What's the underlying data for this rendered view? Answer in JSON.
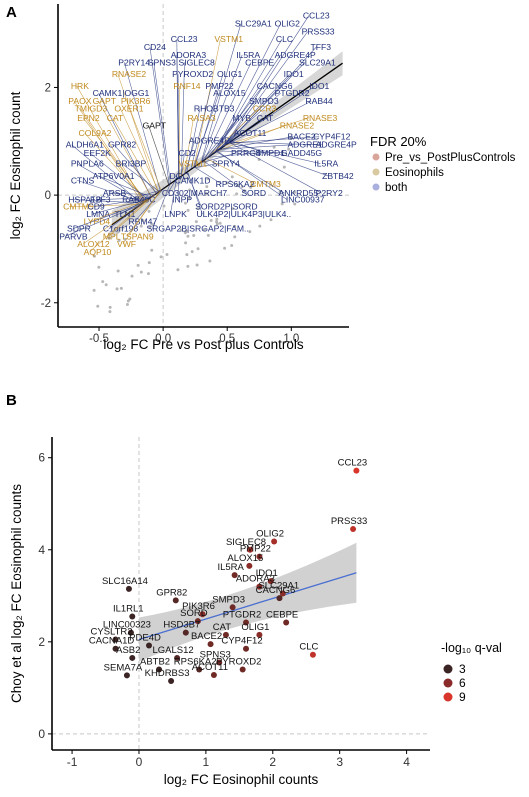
{
  "panel_a_letter": "A",
  "panel_b_letter": "B",
  "chart_data": [
    {
      "type": "scatter",
      "panel": "A",
      "xlabel": "log₂ FC Pre vs Post plus Controls",
      "ylabel": "log₂ FC Eosinophil count",
      "xlim": [
        -0.82,
        1.45
      ],
      "ylim": [
        -2.45,
        3.55
      ],
      "xticks": [
        -0.5,
        0.0,
        0.5,
        1.0
      ],
      "xtick_labels": [
        "-0.5",
        "0.0",
        "0.5",
        "1.0"
      ],
      "yticks": [
        -2,
        0,
        2
      ],
      "ytick_labels": [
        "-2",
        "0",
        "2"
      ],
      "grid": false,
      "reference_lines": {
        "x": 0,
        "y": 0
      },
      "fit_line": {
        "x0": -0.4,
        "y0": -0.55,
        "x1": 1.4,
        "y1": 2.45,
        "band": true
      },
      "legend": {
        "title": "FDR 20%",
        "position": "right",
        "entries": [
          {
            "name": "Pre_vs_PostPlusControls",
            "color": "#d9a59a"
          },
          {
            "name": "Eosinophils",
            "color": "#d9c9a0"
          },
          {
            "name": "both",
            "color": "#aab0dd"
          }
        ]
      },
      "colors": {
        "pre_post": "#c08a1e",
        "both": "#1f2f7a",
        "background_points": "#9a9a9a"
      },
      "labels": [
        {
          "text": "CCL23",
          "x": 1.09,
          "y": 3.28,
          "group": "both"
        },
        {
          "text": "PRSS33",
          "x": 1.08,
          "y": 2.98,
          "group": "both"
        },
        {
          "text": "SLC29A1",
          "x": 0.56,
          "y": 3.13,
          "group": "both"
        },
        {
          "text": "OLIG2",
          "x": 0.87,
          "y": 3.13,
          "group": "both"
        },
        {
          "text": "CCL23",
          "x": 0.06,
          "y": 2.84,
          "group": "both"
        },
        {
          "text": "VSTM1",
          "x": 0.4,
          "y": 2.84,
          "group": "pre_post"
        },
        {
          "text": "CLC",
          "x": 0.88,
          "y": 2.84,
          "group": "both"
        },
        {
          "text": "TFF3",
          "x": 1.15,
          "y": 2.7,
          "group": "both"
        },
        {
          "text": "CD24",
          "x": -0.15,
          "y": 2.7,
          "group": "both"
        },
        {
          "text": "ADORA3",
          "x": 0.06,
          "y": 2.55,
          "group": "both"
        },
        {
          "text": "IL5RA",
          "x": 0.57,
          "y": 2.55,
          "group": "both"
        },
        {
          "text": "ADGRE4P",
          "x": 0.87,
          "y": 2.55,
          "group": "both"
        },
        {
          "text": "P2RY14",
          "x": -0.35,
          "y": 2.41,
          "group": "both"
        },
        {
          "text": "SPNS3",
          "x": -0.12,
          "y": 2.41,
          "group": "both"
        },
        {
          "text": "SIGLEC8",
          "x": 0.12,
          "y": 2.41,
          "group": "both"
        },
        {
          "text": "CEBPE",
          "x": 0.64,
          "y": 2.41,
          "group": "both"
        },
        {
          "text": "SLC29A1",
          "x": 1.06,
          "y": 2.41,
          "group": "both"
        },
        {
          "text": "RNASE2",
          "x": -0.4,
          "y": 2.19,
          "group": "pre_post"
        },
        {
          "text": "PYROXD2",
          "x": 0.07,
          "y": 2.19,
          "group": "both"
        },
        {
          "text": "OLIG1",
          "x": 0.42,
          "y": 2.19,
          "group": "both"
        },
        {
          "text": "IDO1",
          "x": 0.94,
          "y": 2.19,
          "group": "both"
        },
        {
          "text": "HRK",
          "x": -0.72,
          "y": 1.97,
          "group": "pre_post"
        },
        {
          "text": "RNF14",
          "x": 0.08,
          "y": 1.97,
          "group": "pre_post"
        },
        {
          "text": "PMP22",
          "x": 0.33,
          "y": 1.97,
          "group": "both"
        },
        {
          "text": "CACNG6",
          "x": 0.73,
          "y": 1.97,
          "group": "both"
        },
        {
          "text": "IDO1",
          "x": 1.14,
          "y": 1.97,
          "group": "both"
        },
        {
          "text": "CAMK1|OGG1",
          "x": -0.55,
          "y": 1.84,
          "group": "both"
        },
        {
          "text": "ALOX15",
          "x": 0.39,
          "y": 1.84,
          "group": "both"
        },
        {
          "text": "PTGDR2",
          "x": 0.87,
          "y": 1.84,
          "group": "both"
        },
        {
          "text": "PAOX",
          "x": -0.74,
          "y": 1.69,
          "group": "pre_post"
        },
        {
          "text": "GAPT",
          "x": -0.55,
          "y": 1.69,
          "group": "pre_post"
        },
        {
          "text": "PIK3R6",
          "x": -0.33,
          "y": 1.69,
          "group": "pre_post"
        },
        {
          "text": "SMPD3",
          "x": 0.67,
          "y": 1.69,
          "group": "both"
        },
        {
          "text": "RAB44",
          "x": 1.11,
          "y": 1.69,
          "group": "both"
        },
        {
          "text": "TMIGD3",
          "x": -0.69,
          "y": 1.55,
          "group": "pre_post"
        },
        {
          "text": "OXER1",
          "x": -0.38,
          "y": 1.55,
          "group": "pre_post"
        },
        {
          "text": "RHOBTB3",
          "x": 0.24,
          "y": 1.55,
          "group": "both"
        },
        {
          "text": "CCR3",
          "x": 0.7,
          "y": 1.55,
          "group": "pre_post"
        },
        {
          "text": "EPN2",
          "x": -0.67,
          "y": 1.38,
          "group": "pre_post"
        },
        {
          "text": "CAT",
          "x": -0.44,
          "y": 1.38,
          "group": "pre_post"
        },
        {
          "text": "RASA3",
          "x": 0.19,
          "y": 1.38,
          "group": "pre_post"
        },
        {
          "text": "MYB",
          "x": 0.54,
          "y": 1.38,
          "group": "both"
        },
        {
          "text": "CAT",
          "x": 0.73,
          "y": 1.38,
          "group": "both"
        },
        {
          "text": "RNASE3",
          "x": 1.09,
          "y": 1.38,
          "group": "pre_post"
        },
        {
          "text": "GAPT",
          "x": -0.16,
          "y": 1.24,
          "group": "black"
        },
        {
          "text": "RNASE2",
          "x": 0.91,
          "y": 1.24,
          "group": "pre_post"
        },
        {
          "text": "COL9A2",
          "x": -0.66,
          "y": 1.1,
          "group": "pre_post"
        },
        {
          "text": "ACOT11",
          "x": 0.55,
          "y": 1.1,
          "group": "both"
        },
        {
          "text": "ADGRE4P",
          "x": 0.2,
          "y": 0.96,
          "group": "both"
        },
        {
          "text": "BACE2",
          "x": 0.97,
          "y": 1.03,
          "group": "both"
        },
        {
          "text": "CYP4F12",
          "x": 1.17,
          "y": 1.03,
          "group": "both"
        },
        {
          "text": "ALDH6A1",
          "x": -0.76,
          "y": 0.88,
          "group": "both"
        },
        {
          "text": "GPR82",
          "x": -0.43,
          "y": 0.88,
          "group": "both"
        },
        {
          "text": "ADGRE1",
          "x": 0.97,
          "y": 0.88,
          "group": "both"
        },
        {
          "text": "ADGRE4P",
          "x": 1.19,
          "y": 0.88,
          "group": "both"
        },
        {
          "text": "EEF2K",
          "x": -0.62,
          "y": 0.73,
          "group": "both"
        },
        {
          "text": "CD2",
          "x": 0.12,
          "y": 0.73,
          "group": "both"
        },
        {
          "text": "PRRG4",
          "x": 0.53,
          "y": 0.73,
          "group": "both"
        },
        {
          "text": "SMPD1",
          "x": 0.72,
          "y": 0.73,
          "group": "both"
        },
        {
          "text": "GADD45G",
          "x": 0.92,
          "y": 0.73,
          "group": "both"
        },
        {
          "text": "PNPLA6",
          "x": -0.72,
          "y": 0.53,
          "group": "both"
        },
        {
          "text": "BRI3BP",
          "x": -0.37,
          "y": 0.53,
          "group": "both"
        },
        {
          "text": "SPRY4",
          "x": 0.38,
          "y": 0.53,
          "group": "both"
        },
        {
          "text": "VSTM1",
          "x": 0.12,
          "y": 0.53,
          "group": "pre_post"
        },
        {
          "text": "IL5RA",
          "x": 1.18,
          "y": 0.53,
          "group": "both"
        },
        {
          "text": "ATP6V0A1",
          "x": -0.55,
          "y": 0.3,
          "group": "both"
        },
        {
          "text": "DGC",
          "x": 0.05,
          "y": 0.3,
          "group": "both"
        },
        {
          "text": "ZBTB42",
          "x": 1.24,
          "y": 0.3,
          "group": "both"
        },
        {
          "text": "CTNS",
          "x": -0.72,
          "y": 0.22,
          "group": "both"
        },
        {
          "text": "CAMK1D",
          "x": 0.09,
          "y": 0.22,
          "group": "both"
        },
        {
          "text": "RPS6KA2",
          "x": 0.41,
          "y": 0.15,
          "group": "both"
        },
        {
          "text": "CMTM3",
          "x": 0.68,
          "y": 0.15,
          "group": "pre_post"
        },
        {
          "text": "ARSB",
          "x": -0.47,
          "y": -0.02,
          "group": "both"
        },
        {
          "text": "CD302|MARCH7",
          "x": -0.01,
          "y": -0.02,
          "group": "both"
        },
        {
          "text": "SORD",
          "x": 0.61,
          "y": -0.02,
          "group": "both"
        },
        {
          "text": "ANKRD55",
          "x": 0.9,
          "y": -0.02,
          "group": "both"
        },
        {
          "text": "P2RY2",
          "x": 1.19,
          "y": -0.02,
          "group": "both"
        },
        {
          "text": "HSPA1B",
          "x": -0.74,
          "y": -0.14,
          "group": "both"
        },
        {
          "text": "E2F3",
          "x": -0.57,
          "y": -0.14,
          "group": "both"
        },
        {
          "text": "RAB40C",
          "x": -0.32,
          "y": -0.14,
          "group": "both"
        },
        {
          "text": "INPP",
          "x": 0.07,
          "y": -0.14,
          "group": "both"
        },
        {
          "text": "LINC00937",
          "x": 0.92,
          "y": -0.14,
          "group": "both"
        },
        {
          "text": "CMTM5",
          "x": -0.78,
          "y": -0.27,
          "group": "pre_post"
        },
        {
          "text": "CD9",
          "x": -0.59,
          "y": -0.27,
          "group": "both"
        },
        {
          "text": "SORD2P|SORD",
          "x": 0.25,
          "y": -0.27,
          "group": "both"
        },
        {
          "text": "LMNA",
          "x": -0.6,
          "y": -0.41,
          "group": "both"
        },
        {
          "text": "TLN1",
          "x": -0.38,
          "y": -0.41,
          "group": "both"
        },
        {
          "text": "LNPK",
          "x": 0.01,
          "y": -0.41,
          "group": "both"
        },
        {
          "text": "ULK4P2|ULK4P3|ULK4..",
          "x": 0.26,
          "y": -0.41,
          "group": "both"
        },
        {
          "text": "LYPD4",
          "x": -0.62,
          "y": -0.55,
          "group": "pre_post"
        },
        {
          "text": "RBM47",
          "x": -0.27,
          "y": -0.55,
          "group": "both"
        },
        {
          "text": "SDPR",
          "x": -0.75,
          "y": -0.68,
          "group": "both"
        },
        {
          "text": "C1orf198",
          "x": -0.47,
          "y": -0.68,
          "group": "both"
        },
        {
          "text": "SRGAP2B|SRGAP2|FAM..",
          "x": -0.13,
          "y": -0.68,
          "group": "both"
        },
        {
          "text": "PARVB",
          "x": -0.81,
          "y": -0.82,
          "group": "both"
        },
        {
          "text": "MPL",
          "x": -0.47,
          "y": -0.82,
          "group": "pre_post"
        },
        {
          "text": "TSPAN9",
          "x": -0.33,
          "y": -0.82,
          "group": "pre_post"
        },
        {
          "text": "ALOX12",
          "x": -0.67,
          "y": -0.96,
          "group": "pre_post"
        },
        {
          "text": "VWF",
          "x": -0.36,
          "y": -0.96,
          "group": "pre_post"
        },
        {
          "text": "AQP10",
          "x": -0.62,
          "y": -1.11,
          "group": "pre_post"
        }
      ]
    },
    {
      "type": "scatter",
      "panel": "B",
      "xlabel": "log₂ FC Eosinophil counts",
      "ylabel": "Choy et al log₂ FC Eosinophil counts",
      "xlim": [
        -1.3,
        4.35
      ],
      "ylim": [
        -0.35,
        6.45
      ],
      "xticks": [
        -1,
        0,
        1,
        2,
        3,
        4
      ],
      "xtick_labels": [
        "-1",
        "0",
        "1",
        "2",
        "3",
        "4"
      ],
      "yticks": [
        0,
        2,
        4,
        6
      ],
      "ytick_labels": [
        "0",
        "2",
        "4",
        "6"
      ],
      "grid": false,
      "reference_lines": {
        "x": 0,
        "y": 0
      },
      "fit_line": {
        "x0": 0.0,
        "y0": 2.05,
        "x1": 3.25,
        "y1": 3.5,
        "band": true
      },
      "legend": {
        "title": "-log₁₀ q-val",
        "position": "right",
        "entries": [
          {
            "name": "3",
            "color": "#3b2424"
          },
          {
            "name": "6",
            "color": "#8a2a2a"
          },
          {
            "name": "9",
            "color": "#d9362b"
          }
        ]
      },
      "points": [
        {
          "label": "CCL23",
          "x": 3.25,
          "y": 5.72,
          "q": 9
        },
        {
          "label": "PRSS33",
          "x": 3.2,
          "y": 4.45,
          "q": 8
        },
        {
          "label": "OLIG2",
          "x": 2.02,
          "y": 4.18,
          "q": 7
        },
        {
          "label": "SIGLEC8",
          "x": 1.66,
          "y": 4.0,
          "q": 7
        },
        {
          "label": "PMP22",
          "x": 1.8,
          "y": 3.85,
          "q": 6
        },
        {
          "label": "ALOX15",
          "x": 1.65,
          "y": 3.65,
          "q": 6
        },
        {
          "label": "IL5RA",
          "x": 1.43,
          "y": 3.45,
          "q": 5
        },
        {
          "label": "ADORA3",
          "x": 1.8,
          "y": 3.2,
          "q": 6
        },
        {
          "label": "IDO1",
          "x": 1.97,
          "y": 3.32,
          "q": 6
        },
        {
          "label": "SLC29A1",
          "x": 2.15,
          "y": 3.05,
          "q": 6
        },
        {
          "label": "CACNG6",
          "x": 2.1,
          "y": 2.95,
          "q": 4
        },
        {
          "label": "SLC16A14",
          "x": -0.15,
          "y": 3.15,
          "q": 3
        },
        {
          "label": "GPR82",
          "x": 0.55,
          "y": 2.9,
          "q": 4
        },
        {
          "label": "SMPD3",
          "x": 1.4,
          "y": 2.75,
          "q": 5
        },
        {
          "label": "PIK3R6",
          "x": 0.95,
          "y": 2.6,
          "q": 6
        },
        {
          "label": "IL1RL1",
          "x": -0.1,
          "y": 2.55,
          "q": 3
        },
        {
          "label": "SORD",
          "x": 0.88,
          "y": 2.45,
          "q": 5
        },
        {
          "label": "PTGDR2",
          "x": 1.6,
          "y": 2.42,
          "q": 5
        },
        {
          "label": "CEBPE",
          "x": 2.2,
          "y": 2.42,
          "q": 5
        },
        {
          "label": "HSD3B7",
          "x": 0.7,
          "y": 2.2,
          "q": 4
        },
        {
          "label": "LINC00323",
          "x": -0.12,
          "y": 2.2,
          "q": 3
        },
        {
          "label": "CAT",
          "x": 1.3,
          "y": 2.15,
          "q": 5
        },
        {
          "label": "OLIG1",
          "x": 1.8,
          "y": 2.15,
          "q": 6
        },
        {
          "label": "CYSLTR2",
          "x": -0.35,
          "y": 2.05,
          "q": 3
        },
        {
          "label": "CACNA1D",
          "x": -0.35,
          "y": 1.85,
          "q": 3
        },
        {
          "label": "PDE4D",
          "x": 0.15,
          "y": 1.92,
          "q": 3
        },
        {
          "label": "BACE2",
          "x": 1.07,
          "y": 1.95,
          "q": 5
        },
        {
          "label": "CYP4F12",
          "x": 1.6,
          "y": 1.85,
          "q": 5
        },
        {
          "label": "CLC",
          "x": 2.6,
          "y": 1.72,
          "q": 8
        },
        {
          "label": "ASB2",
          "x": -0.1,
          "y": 1.65,
          "q": 3
        },
        {
          "label": "LGALS12",
          "x": 0.57,
          "y": 1.65,
          "q": 4
        },
        {
          "label": "SPNS3",
          "x": 1.2,
          "y": 1.55,
          "q": 5
        },
        {
          "label": "ABTB2",
          "x": 0.3,
          "y": 1.4,
          "q": 3
        },
        {
          "label": "RPS6KA2",
          "x": 0.9,
          "y": 1.4,
          "q": 4
        },
        {
          "label": "PYROXD2",
          "x": 1.55,
          "y": 1.4,
          "q": 5
        },
        {
          "label": "SEMA7A",
          "x": -0.18,
          "y": 1.27,
          "q": 3
        },
        {
          "label": "ACOT11",
          "x": 1.12,
          "y": 1.28,
          "q": 5
        },
        {
          "label": "KHDRBS3",
          "x": 0.48,
          "y": 1.15,
          "q": 3
        }
      ]
    }
  ]
}
